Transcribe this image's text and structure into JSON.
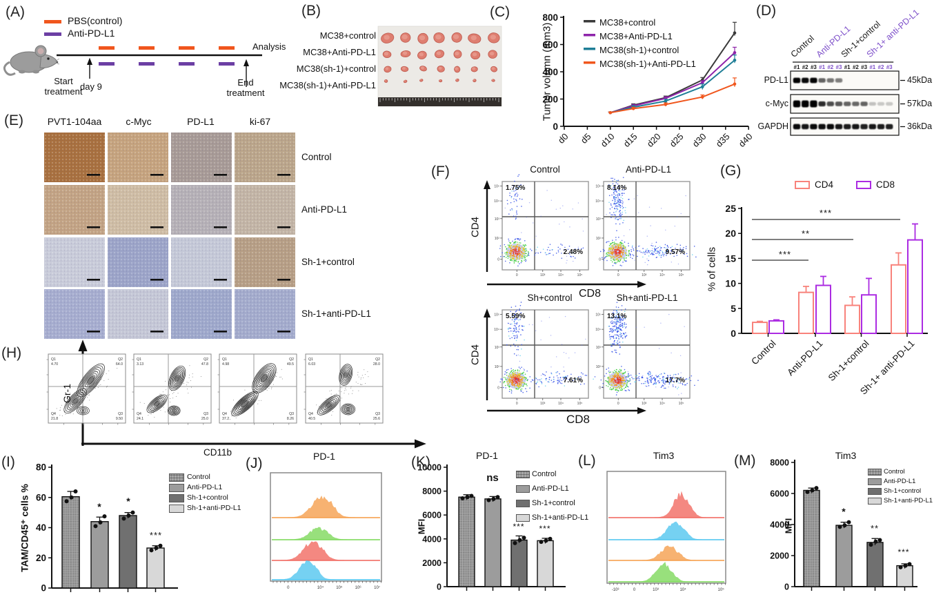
{
  "panels": {
    "A": {
      "tag": "(A)",
      "legend": [
        {
          "label": "PBS(control)",
          "color": "#F0561D"
        },
        {
          "label": "Anti-PD-L1",
          "color": "#6C3FA4"
        }
      ],
      "analysis": "Analysis",
      "start": "Start treatment",
      "day": "day 9",
      "end": "End treatment"
    },
    "B": {
      "tag": "(B)",
      "rows": [
        "MC38+control",
        "MC38+Anti-PD-L1",
        "MC38(sh-1)+control",
        "MC38(sh-1)+Anti-PD-L1"
      ]
    },
    "C": {
      "tag": "(C)"
    },
    "D": {
      "tag": "(D)",
      "groups": [
        {
          "name": "Control",
          "color": "#1a1a1a"
        },
        {
          "name": "Anti-PD-L1",
          "color": "#7D4FC9"
        },
        {
          "name": "Sh-1+control",
          "color": "#1a1a1a"
        },
        {
          "name": "Sh-1+ anti-PD-L1",
          "color": "#7D4FC9"
        }
      ],
      "lanes": [
        "#1",
        "#2",
        "#3"
      ],
      "blots": [
        {
          "protein": "PD-L1",
          "size": "45kDa",
          "bands": [
            0.95,
            0.9,
            0.92,
            0.5,
            0.42,
            0.38,
            0,
            0,
            0,
            0,
            0,
            0
          ]
        },
        {
          "protein": "c-Myc",
          "size": "57kDa",
          "bands": [
            1,
            1,
            1,
            0.75,
            0.6,
            0.55,
            0.5,
            0.48,
            0.5,
            0.08,
            0.05,
            0.05
          ]
        },
        {
          "protein": "GAPDH",
          "size": "36kDa",
          "bands": [
            0.9,
            0.85,
            0.9,
            0.88,
            0.9,
            0.85,
            0.82,
            0.85,
            0.8,
            0.85,
            0.82,
            0.8
          ]
        }
      ]
    },
    "E": {
      "tag": "(E)",
      "columns": [
        "PVT1-104aa",
        "c-Myc",
        "PD-L1",
        "ki-67"
      ],
      "rows": [
        "Control",
        "Anti-PD-L1",
        "Sh-1+control",
        "Sh-1+anti-PD-L1"
      ],
      "tile_colors": [
        [
          "#A8703F",
          "#C5A37E",
          "#A79A96",
          "#BAA58A"
        ],
        [
          "#C2A384",
          "#CEBCA4",
          "#B5B0B6",
          "#C2B4A5"
        ],
        [
          "#C8CBD9",
          "#9CA4C8",
          "#C4C8D7",
          "#B69E85"
        ],
        [
          "#A6ADCF",
          "#C4C7D6",
          "#9EA8CB",
          "#A3ABCC"
        ]
      ]
    },
    "F": {
      "tag": "(F)",
      "xlabel": "CD8",
      "ylabel": "CD4",
      "yticks": [
        "10⁵",
        "10⁴",
        "10³",
        "10²",
        "0"
      ],
      "xticks": [
        "0",
        "10³",
        "10⁴",
        "10⁵"
      ],
      "plots": [
        {
          "title": "Control",
          "q1": "1.75%",
          "q3": "2.48%",
          "q1n": 45,
          "q3n": 45
        },
        {
          "title": "Anti-PD-L1",
          "q1": "8.14%",
          "q3": "9.57%",
          "q1n": 160,
          "q3n": 130
        },
        {
          "title": "Sh+control",
          "q1": "5.59%",
          "q3": "7.61%",
          "q1n": 95,
          "q3n": 90
        },
        {
          "title": "Sh+anti-PD-L1",
          "q1": "13.1%",
          "q3": "17.7%",
          "q1n": 210,
          "q3n": 180
        }
      ]
    },
    "G": {
      "tag": "(G)"
    },
    "H": {
      "tag": "(H)",
      "ylabel": "Gr-1",
      "xlabel": "CD11b",
      "plots": [
        {
          "q1": "4.70",
          "q2": "64.0",
          "q3": "9.50",
          "q4": "21.8"
        },
        {
          "q1": "3.13",
          "q2": "47.8",
          "q3": "25.0",
          "q4": "24.1"
        },
        {
          "q1": "4.98",
          "q2": "49.5",
          "q3": "8.26",
          "q4": "37.2"
        },
        {
          "q1": "6.03",
          "q2": "28.0",
          "q3": "25.6",
          "q4": "40.5"
        }
      ]
    },
    "I": {
      "tag": "(I)"
    },
    "J": {
      "tag": "(J)",
      "title": "PD-1",
      "xticks": [
        "0",
        "10⁴",
        "10⁵",
        "10⁶",
        "10⁷"
      ],
      "colors": [
        "#F6A04E",
        "#7FD95C",
        "#F26B62",
        "#53C6F0"
      ],
      "curves": [
        {
          "baseline": 750,
          "center": 0.46,
          "sigma": 0.085,
          "height": 29
        },
        {
          "baseline": 782,
          "center": 0.43,
          "sigma": 0.075,
          "height": 16
        },
        {
          "baseline": 812,
          "center": 0.38,
          "sigma": 0.08,
          "height": 26
        },
        {
          "baseline": 840,
          "center": 0.33,
          "sigma": 0.07,
          "height": 26
        }
      ]
    },
    "K": {
      "tag": "(K)"
    },
    "L": {
      "tag": "(L)",
      "title": "Tim3",
      "xticks": [
        "-10³",
        "0",
        "10³",
        "10⁴",
        "10⁵"
      ],
      "colors": [
        "#F26B62",
        "#53C6F0",
        "#F6A04E",
        "#7FD95C"
      ],
      "curves": [
        {
          "baseline": 750,
          "center": 0.62,
          "sigma": 0.06,
          "height": 32
        },
        {
          "baseline": 782,
          "center": 0.57,
          "sigma": 0.065,
          "height": 24
        },
        {
          "baseline": 812,
          "center": 0.52,
          "sigma": 0.065,
          "height": 20
        },
        {
          "baseline": 843,
          "center": 0.47,
          "sigma": 0.06,
          "height": 26
        }
      ]
    },
    "M": {
      "tag": "(M)"
    }
  },
  "group_fills": [
    "checker",
    "#9C9C9C",
    "#707070",
    "#D8D8D8"
  ],
  "chart_data": [
    {
      "panel": "C",
      "type": "line",
      "ylabel": "Tumor volumn (mm3)",
      "x_days": [
        10,
        15,
        22,
        30,
        37
      ],
      "xticks": [
        "d0",
        "d5",
        "d10",
        "d15",
        "d20",
        "d25",
        "d30",
        "d35",
        "d40"
      ],
      "ylim": [
        0,
        800
      ],
      "yticks": [
        0,
        200,
        400,
        600,
        800
      ],
      "series": [
        {
          "name": "MC38+control",
          "color": "#3A3A3A",
          "values": [
            100,
            155,
            210,
            340,
            685
          ],
          "err": [
            5,
            10,
            12,
            18,
            78
          ]
        },
        {
          "name": "MC38+Anti-PD-L1",
          "color": "#8E24AA",
          "values": [
            100,
            150,
            205,
            320,
            540
          ],
          "err": [
            5,
            10,
            12,
            15,
            40
          ]
        },
        {
          "name": "MC38(sh-1)+control",
          "color": "#1E7E96",
          "values": [
            100,
            140,
            185,
            290,
            485
          ],
          "err": [
            5,
            12,
            14,
            20,
            38
          ]
        },
        {
          "name": "MC38(sh-1)+Anti-PD-L1",
          "color": "#F0561D",
          "values": [
            100,
            130,
            160,
            215,
            310
          ],
          "err": [
            5,
            10,
            12,
            15,
            45
          ]
        }
      ]
    },
    {
      "panel": "G",
      "type": "grouped-bar",
      "ylabel": "% of cells",
      "categories": [
        "Control",
        "Anti-PD-L1",
        "Sh-1+control",
        "Sh-1+ anti-PD-L1"
      ],
      "ylim": [
        0,
        25
      ],
      "yticks": [
        0,
        5,
        10,
        15,
        20,
        25
      ],
      "series": [
        {
          "name": "CD4",
          "color": "#F8827B",
          "values": [
            2.2,
            8.2,
            5.6,
            13.7
          ],
          "err": [
            0.2,
            1.2,
            1.7,
            2.4
          ]
        },
        {
          "name": "CD8",
          "color": "#AB2BE2",
          "values": [
            2.5,
            9.6,
            7.7,
            18.7
          ],
          "err": [
            0.2,
            1.8,
            3.3,
            3.2
          ]
        }
      ],
      "sig": [
        {
          "label": "***",
          "from": "Control",
          "to": "Sh-1+ anti-PD-L1"
        },
        {
          "label": "**",
          "from": "Control",
          "to": "Sh-1+control"
        },
        {
          "label": "***",
          "from": "Control",
          "to": "Anti-PD-L1"
        }
      ]
    },
    {
      "panel": "I",
      "type": "bar",
      "ylabel": "TAM/CD45⁺ cells %",
      "categories": [
        "Control",
        "Anti-PD-L1",
        "Sh-1+control",
        "Sh-1+anti-PD-L1"
      ],
      "ylim": [
        0,
        80
      ],
      "yticks": [
        0,
        20,
        40,
        60,
        80
      ],
      "values": [
        60.5,
        44,
        48,
        26.5
      ],
      "err": [
        3.5,
        3,
        2,
        1.5
      ],
      "annotations": [
        "",
        "*",
        "*",
        "***"
      ],
      "dots": [
        [
          57.5,
          60,
          64
        ],
        [
          41,
          43.5,
          47.5
        ],
        [
          46,
          48,
          50
        ],
        [
          25,
          26.5,
          28
        ]
      ]
    },
    {
      "panel": "K",
      "type": "bar",
      "title": "PD-1",
      "ylabel": "MFI",
      "categories": [
        "Control",
        "Anti-PD-L1",
        "Sh-1+control",
        "Sh-1+anti-PD-L1"
      ],
      "ylim": [
        0,
        10000
      ],
      "yticks": [
        0,
        2000,
        4000,
        6000,
        8000,
        10000
      ],
      "values": [
        7500,
        7350,
        3900,
        3850
      ],
      "err": [
        200,
        200,
        350,
        200
      ],
      "annotations": [
        "",
        "ns",
        "***",
        "***"
      ],
      "dots": [
        [
          7400,
          7500,
          7600
        ],
        [
          7250,
          7350,
          7500
        ],
        [
          3650,
          3900,
          4100
        ],
        [
          3750,
          3850,
          4000
        ]
      ]
    },
    {
      "panel": "M",
      "type": "bar",
      "title": "Tim3",
      "ylabel": "MFI",
      "categories": [
        "Control",
        "Anti-PD-L1",
        "Sh-1+control",
        "Sh-1+anti-PD-L1"
      ],
      "ylim": [
        0,
        8000
      ],
      "yticks": [
        0,
        2000,
        4000,
        6000,
        8000
      ],
      "values": [
        6200,
        3950,
        2850,
        1350
      ],
      "err": [
        150,
        200,
        250,
        120
      ],
      "annotations": [
        "",
        "*",
        "**",
        "***"
      ],
      "dots": [
        [
          6100,
          6200,
          6350
        ],
        [
          3850,
          3950,
          4150
        ],
        [
          2700,
          2900,
          3000
        ],
        [
          1250,
          1350,
          1450
        ]
      ]
    }
  ]
}
